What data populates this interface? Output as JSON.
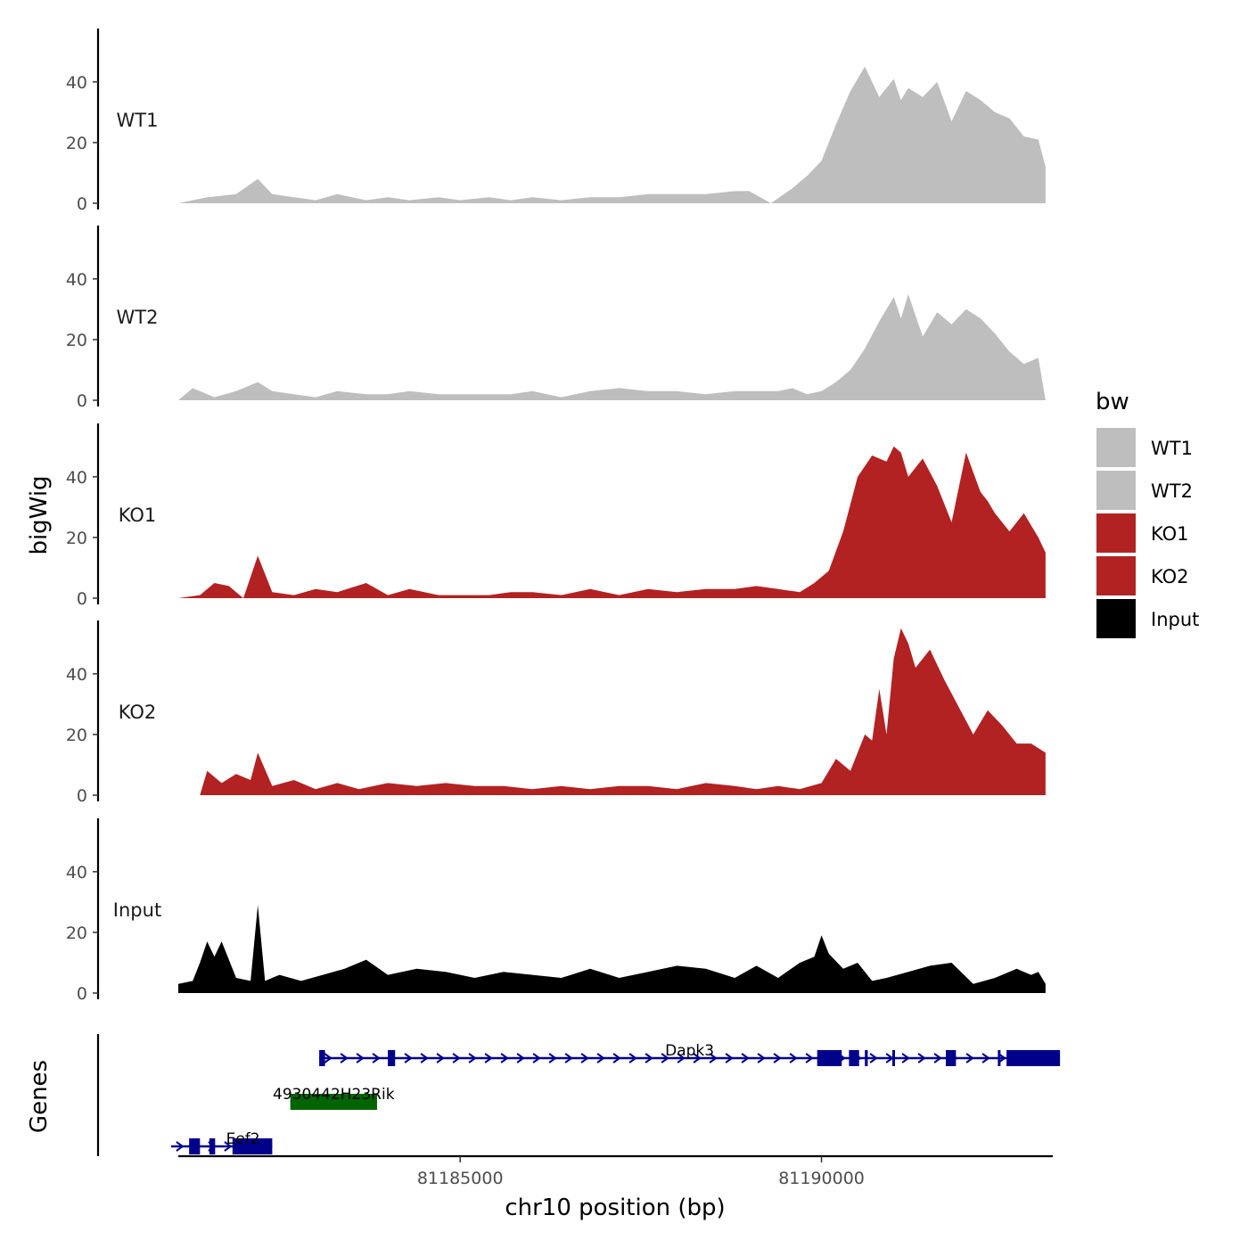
{
  "chart_data": {
    "type": "area",
    "y_axis_title": "bigWig",
    "x_axis_title": "chr10 position (bp)",
    "genes_axis_title": "Genes",
    "xlim": [
      81181100,
      81193200
    ],
    "ylim": [
      0,
      57
    ],
    "y_ticks": [
      0,
      20,
      40
    ],
    "x_ticks": [
      81185000,
      81190000
    ],
    "legend": {
      "title": "bw",
      "entries": [
        {
          "name": "WT1",
          "color": "#bebebe"
        },
        {
          "name": "WT2",
          "color": "#bebebe"
        },
        {
          "name": "KO1",
          "color": "#b22222"
        },
        {
          "name": "KO2",
          "color": "#b22222"
        },
        {
          "name": "Input",
          "color": "#000000"
        }
      ]
    },
    "series": [
      {
        "name": "WT1",
        "color": "#bebebe",
        "x": [
          81181100,
          81181500,
          81181900,
          81182200,
          81182400,
          81182700,
          81183000,
          81183300,
          81183700,
          81184000,
          81184300,
          81184700,
          81185000,
          81185400,
          81185700,
          81186000,
          81186400,
          81186800,
          81187200,
          81187600,
          81188000,
          81188400,
          81188800,
          81189000,
          81189300,
          81189600,
          81189800,
          81190000,
          81190200,
          81190400,
          81190600,
          81190800,
          81191000,
          81191100,
          81191200,
          81191400,
          81191600,
          81191800,
          81192000,
          81192200,
          81192400,
          81192600,
          81192800,
          81193000,
          81193100
        ],
        "values": [
          0,
          2,
          3,
          8,
          3,
          2,
          1,
          3,
          1,
          2,
          1,
          2,
          1,
          2,
          1,
          2,
          1,
          2,
          2,
          3,
          3,
          3,
          4,
          4,
          0,
          5,
          9,
          14,
          26,
          37,
          45,
          35,
          41,
          34,
          38,
          35,
          40,
          27,
          37,
          34,
          30,
          28,
          22,
          21,
          12
        ]
      },
      {
        "name": "WT2",
        "color": "#bebebe",
        "x": [
          81181100,
          81181300,
          81181600,
          81181900,
          81182200,
          81182400,
          81182700,
          81183000,
          81183300,
          81183700,
          81184000,
          81184300,
          81184700,
          81185000,
          81185400,
          81185700,
          81186000,
          81186400,
          81186800,
          81187200,
          81187600,
          81188000,
          81188400,
          81188800,
          81189100,
          81189400,
          81189600,
          81189800,
          81190000,
          81190200,
          81190400,
          81190600,
          81190800,
          81191000,
          81191100,
          81191200,
          81191400,
          81191600,
          81191800,
          81192000,
          81192200,
          81192400,
          81192600,
          81192800,
          81193000,
          81193100
        ],
        "values": [
          0,
          4,
          1,
          3,
          6,
          3,
          2,
          1,
          3,
          2,
          2,
          3,
          2,
          2,
          2,
          2,
          3,
          1,
          3,
          4,
          3,
          3,
          2,
          3,
          3,
          3,
          4,
          2,
          3,
          6,
          10,
          17,
          26,
          34,
          27,
          35,
          21,
          29,
          25,
          30,
          27,
          22,
          16,
          12,
          14,
          0
        ]
      },
      {
        "name": "KO1",
        "color": "#b22222",
        "x": [
          81181100,
          81181400,
          81181600,
          81181800,
          81181900,
          81182000,
          81182200,
          81182400,
          81182700,
          81183000,
          81183300,
          81183700,
          81184000,
          81184300,
          81184700,
          81185000,
          81185400,
          81185700,
          81186000,
          81186400,
          81186800,
          81187200,
          81187600,
          81188000,
          81188400,
          81188800,
          81189100,
          81189400,
          81189700,
          81189900,
          81190100,
          81190300,
          81190500,
          81190700,
          81190900,
          81191000,
          81191100,
          81191200,
          81191400,
          81191600,
          81191800,
          81192000,
          81192200,
          81192300,
          81192400,
          81192600,
          81192800,
          81193000,
          81193100
        ],
        "values": [
          0,
          1,
          5,
          4,
          2,
          0,
          14,
          2,
          1,
          3,
          2,
          5,
          1,
          3,
          1,
          1,
          1,
          2,
          2,
          1,
          3,
          1,
          3,
          2,
          3,
          3,
          4,
          3,
          2,
          5,
          9,
          22,
          40,
          47,
          45,
          50,
          48,
          40,
          46,
          37,
          25,
          48,
          35,
          32,
          28,
          22,
          28,
          20,
          15
        ]
      },
      {
        "name": "KO2",
        "color": "#b22222",
        "x": [
          81181100,
          81181400,
          81181500,
          81181700,
          81181900,
          81182100,
          81182200,
          81182400,
          81182700,
          81183000,
          81183300,
          81183600,
          81184000,
          81184400,
          81184800,
          81185200,
          81185600,
          81186000,
          81186400,
          81186800,
          81187200,
          81187600,
          81188000,
          81188400,
          81188800,
          81189100,
          81189400,
          81189700,
          81190000,
          81190200,
          81190400,
          81190600,
          81190700,
          81190800,
          81190900,
          81191000,
          81191100,
          81191200,
          81191300,
          81191500,
          81191700,
          81191900,
          81192100,
          81192300,
          81192500,
          81192700,
          81192900,
          81193100
        ],
        "values": [
          0,
          0,
          8,
          4,
          7,
          5,
          14,
          3,
          5,
          2,
          4,
          2,
          4,
          3,
          4,
          3,
          3,
          2,
          3,
          2,
          3,
          3,
          2,
          4,
          3,
          2,
          3,
          2,
          4,
          12,
          8,
          20,
          18,
          35,
          20,
          45,
          55,
          50,
          42,
          48,
          38,
          29,
          20,
          28,
          23,
          17,
          17,
          14
        ]
      },
      {
        "name": "Input",
        "color": "#000000",
        "x": [
          81181100,
          81181300,
          81181400,
          81181500,
          81181600,
          81181700,
          81181900,
          81182100,
          81182200,
          81182300,
          81182500,
          81182800,
          81183100,
          81183400,
          81183700,
          81184000,
          81184400,
          81184800,
          81185200,
          81185600,
          81186000,
          81186400,
          81186800,
          81187200,
          81187600,
          81188000,
          81188400,
          81188800,
          81189100,
          81189400,
          81189700,
          81189900,
          81190000,
          81190100,
          81190300,
          81190500,
          81190700,
          81190900,
          81191200,
          81191500,
          81191800,
          81192100,
          81192400,
          81192700,
          81192900,
          81193000,
          81193100
        ],
        "values": [
          3,
          4,
          10,
          17,
          12,
          17,
          5,
          4,
          29,
          4,
          6,
          4,
          6,
          8,
          11,
          6,
          8,
          7,
          5,
          7,
          6,
          5,
          8,
          5,
          7,
          9,
          8,
          5,
          9,
          5,
          10,
          12,
          19,
          13,
          8,
          10,
          4,
          5,
          7,
          9,
          10,
          3,
          5,
          8,
          6,
          7,
          3
        ]
      }
    ],
    "genes": [
      {
        "name": "Dapk3",
        "strand": "+",
        "color": "#00008b",
        "start": 81183050,
        "end": 81193300,
        "exons": [
          [
            81183050,
            81183130
          ],
          [
            81184000,
            81184100
          ],
          [
            81189940,
            81190280
          ],
          [
            81190380,
            81190520
          ],
          [
            81190600,
            81190640
          ],
          [
            81190980,
            81191010
          ],
          [
            81191720,
            81191860
          ],
          [
            81192440,
            81192470
          ],
          [
            81192560,
            81193300
          ]
        ]
      },
      {
        "name": "4930442H23Rik",
        "strand": "-",
        "color": "#006400",
        "start": 81182650,
        "end": 81183850,
        "exons": [
          [
            81182650,
            81183850
          ]
        ]
      },
      {
        "name": "Eef2",
        "strand": "+",
        "color": "#00008b",
        "start": 81181000,
        "end": 81182400,
        "exons": [
          [
            81181250,
            81181400
          ],
          [
            81181530,
            81181610
          ],
          [
            81181850,
            81182400
          ]
        ]
      }
    ]
  }
}
